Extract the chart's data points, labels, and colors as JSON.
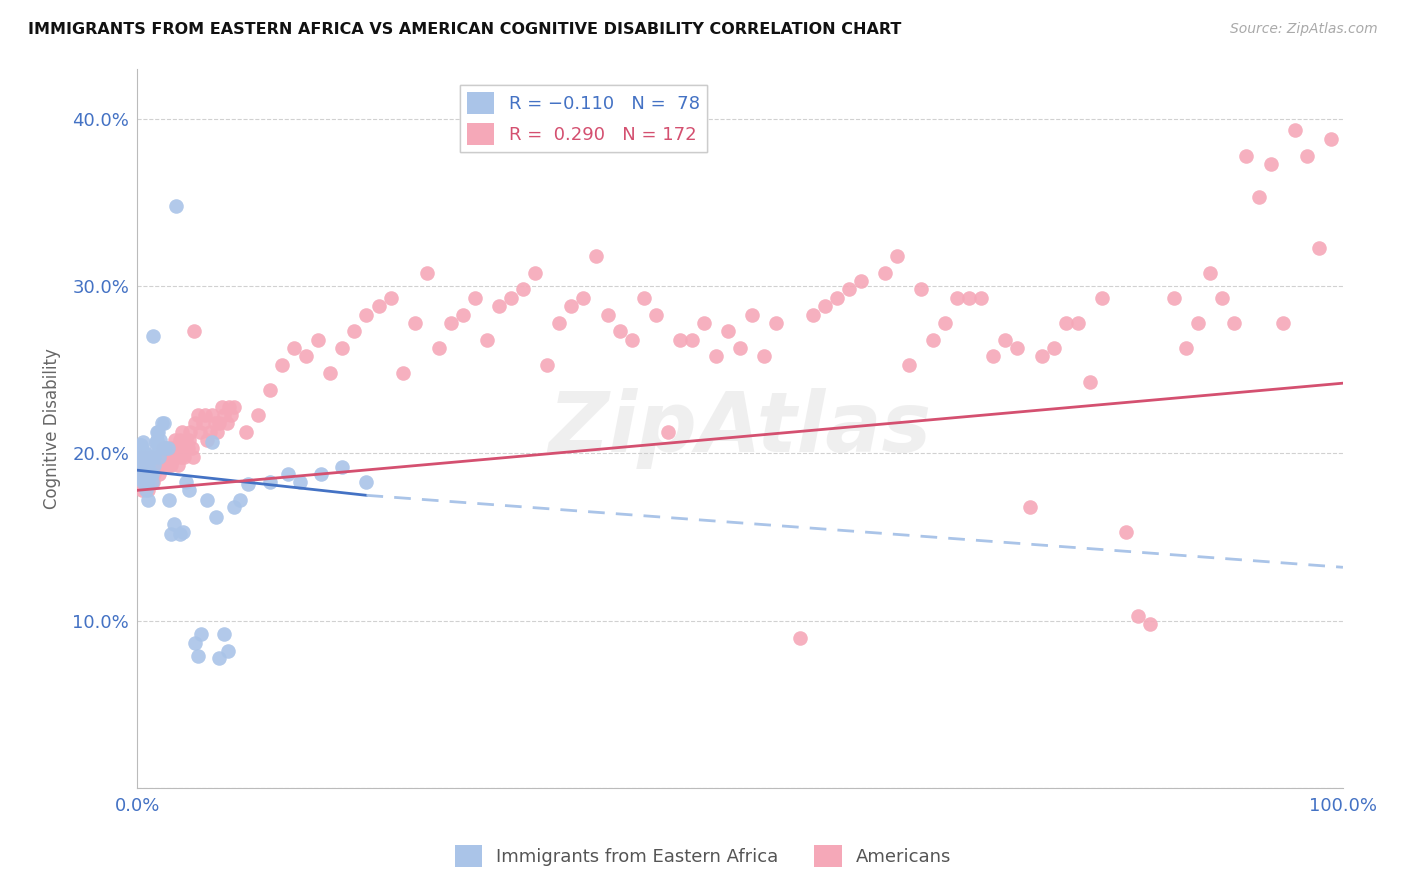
{
  "title": "IMMIGRANTS FROM EASTERN AFRICA VS AMERICAN COGNITIVE DISABILITY CORRELATION CHART",
  "source": "Source: ZipAtlas.com",
  "ylabel": "Cognitive Disability",
  "xlim": [
    0.0,
    1.0
  ],
  "ylim": [
    0.0,
    0.43
  ],
  "yticks": [
    0.0,
    0.1,
    0.2,
    0.3,
    0.4
  ],
  "ytick_labels": [
    "",
    "10.0%",
    "20.0%",
    "30.0%",
    "40.0%"
  ],
  "blue_scatter_color": "#aac4e8",
  "pink_scatter_color": "#f5a8b8",
  "blue_line_color": "#4472c4",
  "pink_line_color": "#d45070",
  "dashed_line_color": "#aac4e8",
  "watermark": "ZipAtlas",
  "background_color": "#ffffff",
  "grid_color": "#cccccc",
  "title_color": "#111111",
  "axis_label_color": "#4472c4",
  "blue_points": [
    [
      0.002,
      0.19
    ],
    [
      0.002,
      0.195
    ],
    [
      0.002,
      0.2
    ],
    [
      0.002,
      0.205
    ],
    [
      0.003,
      0.185
    ],
    [
      0.003,
      0.19
    ],
    [
      0.003,
      0.195
    ],
    [
      0.003,
      0.2
    ],
    [
      0.003,
      0.205
    ],
    [
      0.004,
      0.185
    ],
    [
      0.004,
      0.19
    ],
    [
      0.004,
      0.195
    ],
    [
      0.004,
      0.198
    ],
    [
      0.004,
      0.202
    ],
    [
      0.004,
      0.188
    ],
    [
      0.005,
      0.192
    ],
    [
      0.005,
      0.197
    ],
    [
      0.005,
      0.183
    ],
    [
      0.005,
      0.207
    ],
    [
      0.006,
      0.188
    ],
    [
      0.006,
      0.193
    ],
    [
      0.006,
      0.2
    ],
    [
      0.007,
      0.186
    ],
    [
      0.007,
      0.193
    ],
    [
      0.007,
      0.178
    ],
    [
      0.007,
      0.188
    ],
    [
      0.008,
      0.183
    ],
    [
      0.008,
      0.193
    ],
    [
      0.009,
      0.183
    ],
    [
      0.009,
      0.172
    ],
    [
      0.009,
      0.193
    ],
    [
      0.01,
      0.198
    ],
    [
      0.011,
      0.198
    ],
    [
      0.011,
      0.187
    ],
    [
      0.012,
      0.188
    ],
    [
      0.012,
      0.183
    ],
    [
      0.013,
      0.27
    ],
    [
      0.014,
      0.193
    ],
    [
      0.014,
      0.198
    ],
    [
      0.015,
      0.207
    ],
    [
      0.015,
      0.203
    ],
    [
      0.016,
      0.208
    ],
    [
      0.016,
      0.213
    ],
    [
      0.017,
      0.213
    ],
    [
      0.018,
      0.203
    ],
    [
      0.018,
      0.198
    ],
    [
      0.019,
      0.208
    ],
    [
      0.02,
      0.218
    ],
    [
      0.022,
      0.218
    ],
    [
      0.023,
      0.203
    ],
    [
      0.025,
      0.203
    ],
    [
      0.026,
      0.172
    ],
    [
      0.028,
      0.152
    ],
    [
      0.03,
      0.158
    ],
    [
      0.032,
      0.348
    ],
    [
      0.035,
      0.152
    ],
    [
      0.038,
      0.153
    ],
    [
      0.04,
      0.183
    ],
    [
      0.043,
      0.178
    ],
    [
      0.048,
      0.087
    ],
    [
      0.05,
      0.079
    ],
    [
      0.053,
      0.092
    ],
    [
      0.058,
      0.172
    ],
    [
      0.062,
      0.207
    ],
    [
      0.065,
      0.162
    ],
    [
      0.068,
      0.078
    ],
    [
      0.072,
      0.092
    ],
    [
      0.075,
      0.082
    ],
    [
      0.08,
      0.168
    ],
    [
      0.085,
      0.172
    ],
    [
      0.092,
      0.182
    ],
    [
      0.11,
      0.183
    ],
    [
      0.125,
      0.188
    ],
    [
      0.135,
      0.183
    ],
    [
      0.152,
      0.188
    ],
    [
      0.17,
      0.192
    ],
    [
      0.19,
      0.183
    ]
  ],
  "pink_points": [
    [
      0.003,
      0.192
    ],
    [
      0.003,
      0.198
    ],
    [
      0.004,
      0.178
    ],
    [
      0.004,
      0.188
    ],
    [
      0.005,
      0.183
    ],
    [
      0.005,
      0.193
    ],
    [
      0.006,
      0.188
    ],
    [
      0.006,
      0.198
    ],
    [
      0.007,
      0.183
    ],
    [
      0.008,
      0.193
    ],
    [
      0.009,
      0.178
    ],
    [
      0.01,
      0.193
    ],
    [
      0.011,
      0.198
    ],
    [
      0.012,
      0.188
    ],
    [
      0.013,
      0.183
    ],
    [
      0.014,
      0.188
    ],
    [
      0.015,
      0.193
    ],
    [
      0.016,
      0.198
    ],
    [
      0.017,
      0.193
    ],
    [
      0.018,
      0.188
    ],
    [
      0.019,
      0.198
    ],
    [
      0.02,
      0.193
    ],
    [
      0.021,
      0.203
    ],
    [
      0.022,
      0.198
    ],
    [
      0.023,
      0.193
    ],
    [
      0.024,
      0.203
    ],
    [
      0.025,
      0.198
    ],
    [
      0.026,
      0.193
    ],
    [
      0.027,
      0.198
    ],
    [
      0.028,
      0.193
    ],
    [
      0.029,
      0.203
    ],
    [
      0.03,
      0.198
    ],
    [
      0.031,
      0.208
    ],
    [
      0.032,
      0.198
    ],
    [
      0.033,
      0.203
    ],
    [
      0.034,
      0.193
    ],
    [
      0.035,
      0.208
    ],
    [
      0.036,
      0.198
    ],
    [
      0.037,
      0.213
    ],
    [
      0.038,
      0.203
    ],
    [
      0.039,
      0.198
    ],
    [
      0.04,
      0.208
    ],
    [
      0.041,
      0.203
    ],
    [
      0.042,
      0.203
    ],
    [
      0.043,
      0.208
    ],
    [
      0.044,
      0.213
    ],
    [
      0.045,
      0.203
    ],
    [
      0.046,
      0.198
    ],
    [
      0.047,
      0.273
    ],
    [
      0.048,
      0.218
    ],
    [
      0.05,
      0.223
    ],
    [
      0.052,
      0.213
    ],
    [
      0.054,
      0.218
    ],
    [
      0.056,
      0.223
    ],
    [
      0.058,
      0.208
    ],
    [
      0.06,
      0.213
    ],
    [
      0.062,
      0.223
    ],
    [
      0.064,
      0.218
    ],
    [
      0.066,
      0.213
    ],
    [
      0.068,
      0.218
    ],
    [
      0.07,
      0.228
    ],
    [
      0.072,
      0.223
    ],
    [
      0.074,
      0.218
    ],
    [
      0.076,
      0.228
    ],
    [
      0.078,
      0.223
    ],
    [
      0.08,
      0.228
    ],
    [
      0.09,
      0.213
    ],
    [
      0.1,
      0.223
    ],
    [
      0.11,
      0.238
    ],
    [
      0.12,
      0.253
    ],
    [
      0.13,
      0.263
    ],
    [
      0.14,
      0.258
    ],
    [
      0.15,
      0.268
    ],
    [
      0.16,
      0.248
    ],
    [
      0.17,
      0.263
    ],
    [
      0.18,
      0.273
    ],
    [
      0.19,
      0.283
    ],
    [
      0.2,
      0.288
    ],
    [
      0.21,
      0.293
    ],
    [
      0.22,
      0.248
    ],
    [
      0.23,
      0.278
    ],
    [
      0.24,
      0.308
    ],
    [
      0.25,
      0.263
    ],
    [
      0.26,
      0.278
    ],
    [
      0.27,
      0.283
    ],
    [
      0.28,
      0.293
    ],
    [
      0.29,
      0.268
    ],
    [
      0.3,
      0.288
    ],
    [
      0.31,
      0.293
    ],
    [
      0.32,
      0.298
    ],
    [
      0.33,
      0.308
    ],
    [
      0.34,
      0.253
    ],
    [
      0.35,
      0.278
    ],
    [
      0.36,
      0.288
    ],
    [
      0.37,
      0.293
    ],
    [
      0.38,
      0.318
    ],
    [
      0.39,
      0.283
    ],
    [
      0.4,
      0.273
    ],
    [
      0.41,
      0.268
    ],
    [
      0.42,
      0.293
    ],
    [
      0.43,
      0.283
    ],
    [
      0.44,
      0.213
    ],
    [
      0.45,
      0.268
    ],
    [
      0.46,
      0.268
    ],
    [
      0.47,
      0.278
    ],
    [
      0.48,
      0.258
    ],
    [
      0.49,
      0.273
    ],
    [
      0.5,
      0.263
    ],
    [
      0.51,
      0.283
    ],
    [
      0.52,
      0.258
    ],
    [
      0.53,
      0.278
    ],
    [
      0.55,
      0.09
    ],
    [
      0.56,
      0.283
    ],
    [
      0.57,
      0.288
    ],
    [
      0.58,
      0.293
    ],
    [
      0.59,
      0.298
    ],
    [
      0.6,
      0.303
    ],
    [
      0.62,
      0.308
    ],
    [
      0.63,
      0.318
    ],
    [
      0.64,
      0.253
    ],
    [
      0.65,
      0.298
    ],
    [
      0.66,
      0.268
    ],
    [
      0.67,
      0.278
    ],
    [
      0.68,
      0.293
    ],
    [
      0.69,
      0.293
    ],
    [
      0.7,
      0.293
    ],
    [
      0.71,
      0.258
    ],
    [
      0.72,
      0.268
    ],
    [
      0.73,
      0.263
    ],
    [
      0.74,
      0.168
    ],
    [
      0.75,
      0.258
    ],
    [
      0.76,
      0.263
    ],
    [
      0.77,
      0.278
    ],
    [
      0.78,
      0.278
    ],
    [
      0.79,
      0.243
    ],
    [
      0.8,
      0.293
    ],
    [
      0.82,
      0.153
    ],
    [
      0.83,
      0.103
    ],
    [
      0.84,
      0.098
    ],
    [
      0.86,
      0.293
    ],
    [
      0.87,
      0.263
    ],
    [
      0.88,
      0.278
    ],
    [
      0.89,
      0.308
    ],
    [
      0.9,
      0.293
    ],
    [
      0.91,
      0.278
    ],
    [
      0.92,
      0.378
    ],
    [
      0.93,
      0.353
    ],
    [
      0.94,
      0.373
    ],
    [
      0.95,
      0.278
    ],
    [
      0.96,
      0.393
    ],
    [
      0.97,
      0.378
    ],
    [
      0.98,
      0.323
    ],
    [
      0.99,
      0.388
    ]
  ],
  "blue_line_x": [
    0.0,
    0.19
  ],
  "blue_line_y": [
    0.19,
    0.175
  ],
  "dashed_line_x": [
    0.19,
    1.0
  ],
  "dashed_line_y": [
    0.175,
    0.132
  ],
  "pink_line_x": [
    0.0,
    1.0
  ],
  "pink_line_y": [
    0.178,
    0.242
  ]
}
